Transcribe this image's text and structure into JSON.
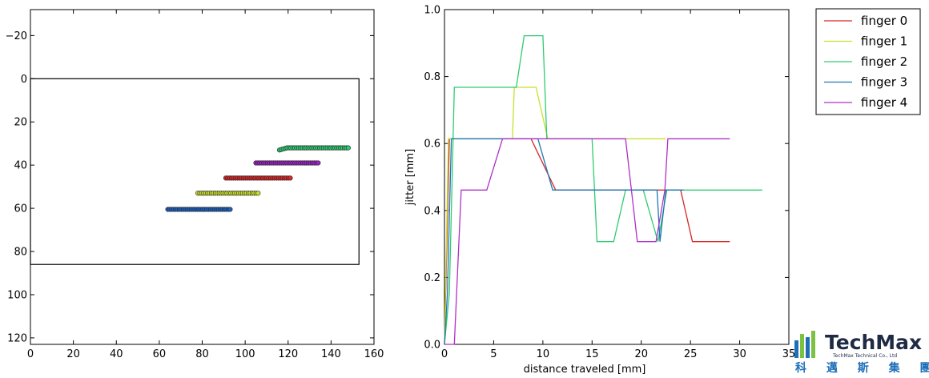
{
  "chart_data": [
    {
      "type": "scatter",
      "xlim": [
        0,
        160
      ],
      "ylim": [
        -32,
        123
      ],
      "y_inverted": true,
      "grid": false,
      "x_ticks": [
        0,
        20,
        40,
        60,
        80,
        100,
        120,
        140,
        160
      ],
      "y_ticks": [
        -20,
        0,
        20,
        40,
        60,
        80,
        100,
        120
      ],
      "x_tick_labels": [
        "0",
        "20",
        "40",
        "60",
        "80",
        "100",
        "120",
        "140",
        "160"
      ],
      "y_tick_labels": [
        "−20",
        "0",
        "20",
        "40",
        "60",
        "80",
        "100",
        "120"
      ],
      "rectangle": {
        "x0": 0,
        "y0": 0,
        "x1": 153,
        "y1": 86
      },
      "series": [
        {
          "color": "#d62728",
          "y": 46,
          "x_from": 91,
          "x_to": 121
        },
        {
          "color": "#c8e02c",
          "y": 53,
          "x_from": 78,
          "x_to": 106
        },
        {
          "color": "#2ecc71",
          "y": 32,
          "x_from": 116,
          "x_to": 148,
          "y_start": 33
        },
        {
          "color": "#1f5fbf",
          "y": 60.5,
          "x_from": 64,
          "x_to": 93
        },
        {
          "color": "#a020c8",
          "y": 39,
          "x_from": 105,
          "x_to": 134
        }
      ]
    },
    {
      "type": "line",
      "xlabel": "distance traveled [mm]",
      "ylabel": "jitter [mm]",
      "xlim": [
        0,
        35
      ],
      "ylim": [
        0,
        1.0
      ],
      "grid": false,
      "x_ticks": [
        0,
        5,
        10,
        15,
        20,
        25,
        30,
        35
      ],
      "y_ticks": [
        0.0,
        0.2,
        0.4,
        0.6,
        0.8,
        1.0
      ],
      "x_tick_labels": [
        "0",
        "5",
        "10",
        "15",
        "20",
        "25",
        "30",
        "35"
      ],
      "y_tick_labels": [
        "0.0",
        "0.2",
        "0.4",
        "0.6",
        "0.8",
        "1.0"
      ],
      "legend_position": "outside-top-right",
      "series": [
        {
          "name": "finger 0",
          "color": "#d62728",
          "points": [
            [
              0,
              0
            ],
            [
              0.5,
              0.614
            ],
            [
              8.8,
              0.614
            ],
            [
              11.3,
              0.461
            ],
            [
              24,
              0.461
            ],
            [
              25.2,
              0.307
            ],
            [
              29,
              0.307
            ]
          ]
        },
        {
          "name": "finger 1",
          "color": "#c8e02c",
          "points": [
            [
              0,
              0
            ],
            [
              0.4,
              0.614
            ],
            [
              6.9,
              0.614
            ],
            [
              7.1,
              0.768
            ],
            [
              9.3,
              0.768
            ],
            [
              10.5,
              0.614
            ],
            [
              22.5,
              0.614
            ]
          ]
        },
        {
          "name": "finger 2",
          "color": "#2ecc71",
          "points": [
            [
              0,
              0
            ],
            [
              0.5,
              0.154
            ],
            [
              1,
              0.768
            ],
            [
              7.3,
              0.768
            ],
            [
              8.1,
              0.922
            ],
            [
              10,
              0.922
            ],
            [
              10.4,
              0.614
            ],
            [
              15,
              0.614
            ],
            [
              15.5,
              0.307
            ],
            [
              17.2,
              0.307
            ],
            [
              18.4,
              0.461
            ],
            [
              20.2,
              0.461
            ],
            [
              21.7,
              0.307
            ],
            [
              22.6,
              0.461
            ],
            [
              32.3,
              0.461
            ]
          ]
        },
        {
          "name": "finger 3",
          "color": "#1f77b4",
          "points": [
            [
              0,
              0
            ],
            [
              0.3,
              0.154
            ],
            [
              0.7,
              0.614
            ],
            [
              9.5,
              0.614
            ],
            [
              11,
              0.461
            ],
            [
              21.6,
              0.461
            ],
            [
              21.9,
              0.307
            ],
            [
              22.5,
              0.461
            ],
            [
              24.3,
              0.461
            ]
          ]
        },
        {
          "name": "finger 4",
          "color": "#b030c8",
          "points": [
            [
              0,
              0
            ],
            [
              1,
              0
            ],
            [
              1.7,
              0.461
            ],
            [
              4.3,
              0.461
            ],
            [
              5.9,
              0.614
            ],
            [
              18.4,
              0.614
            ],
            [
              19.6,
              0.307
            ],
            [
              21.5,
              0.307
            ],
            [
              22.4,
              0.461
            ],
            [
              22.7,
              0.614
            ],
            [
              29,
              0.614
            ]
          ]
        }
      ]
    }
  ],
  "logo": {
    "name": "TechMax",
    "subtitle": "TechMax Technical Co., Ltd",
    "chinese": "科 邁 斯 集 團",
    "colors": [
      "#1f6fb8",
      "#7cc242"
    ]
  }
}
